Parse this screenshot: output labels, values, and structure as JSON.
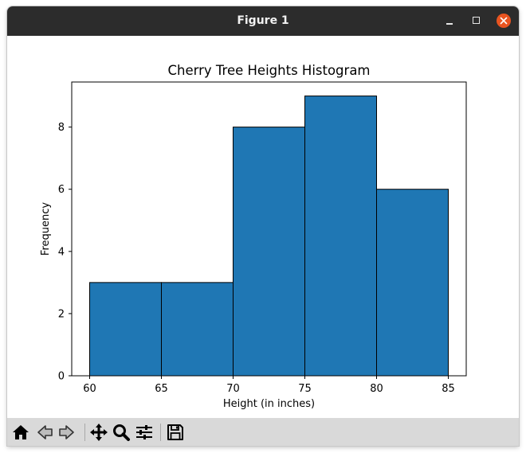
{
  "window": {
    "title": "Figure 1"
  },
  "titlebar_buttons": [
    "minimize-icon",
    "maximize-icon",
    "close-icon"
  ],
  "toolbar": {
    "icons": [
      "home-icon",
      "back-arrow-icon",
      "forward-arrow-icon",
      "pan-move-icon",
      "zoom-magnifier-icon",
      "configure-subplots-icon",
      "save-floppy-icon"
    ]
  },
  "colors": {
    "bar_fill": "#1f77b4",
    "bar_edge": "#000000",
    "titlebar": "#2c2c2c",
    "close_button": "#e95420",
    "toolbar": "#d9d9d9"
  },
  "chart_data": {
    "type": "bar",
    "title": "Cherry Tree Heights Histogram",
    "xlabel": "Height (in inches)",
    "ylabel": "Frequency",
    "bins": [
      {
        "start": 60,
        "end": 65,
        "count": 3
      },
      {
        "start": 65,
        "end": 70,
        "count": 3
      },
      {
        "start": 70,
        "end": 75,
        "count": 8
      },
      {
        "start": 75,
        "end": 80,
        "count": 9
      },
      {
        "start": 80,
        "end": 85,
        "count": 6
      }
    ],
    "xlim": [
      58.75,
      86.25
    ],
    "ylim": [
      0,
      9.45
    ],
    "xticks": [
      60,
      65,
      70,
      75,
      80,
      85
    ],
    "yticks": [
      0,
      2,
      4,
      6,
      8
    ],
    "grid": false,
    "legend": "none"
  }
}
